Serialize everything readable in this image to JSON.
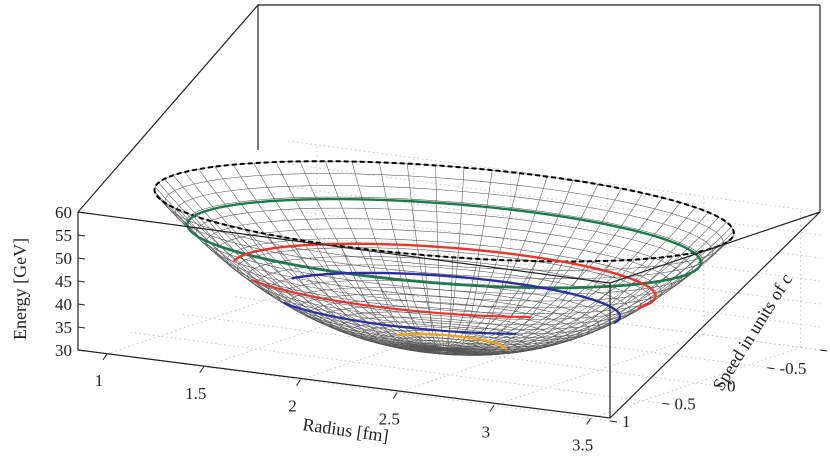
{
  "chart_data": {
    "type": "surface3d",
    "title": "",
    "xlabel": "Radius [fm]",
    "ylabel": "Speed in units of c",
    "zlabel": "Energy [GeV]",
    "x_ticks": [
      "1",
      "1.5",
      "2",
      "2.5",
      "3",
      "3.5"
    ],
    "y_ticks": [
      "-1",
      "-0.5",
      "0",
      "0.5",
      "1"
    ],
    "z_ticks": [
      "60",
      "55",
      "50",
      "45",
      "40",
      "35",
      "30"
    ],
    "xlim": [
      0.85,
      3.6
    ],
    "ylim": [
      -1,
      1
    ],
    "zlim": [
      30,
      60
    ],
    "grid": true,
    "surface": {
      "description_color": "#555555",
      "rim_energy": 60,
      "min_energy": 30
    },
    "contours": [
      {
        "color": "#000000",
        "style": "dashed",
        "energy": 60
      },
      {
        "color": "#1a7a4a",
        "style": "solid",
        "energy": 53
      },
      {
        "color": "#e8352e",
        "style": "solid",
        "energy": 45
      },
      {
        "color": "#2a2f9e",
        "style": "solid",
        "energy": 40
      },
      {
        "color": "#f0a020",
        "style": "solid",
        "energy": 31
      }
    ]
  }
}
